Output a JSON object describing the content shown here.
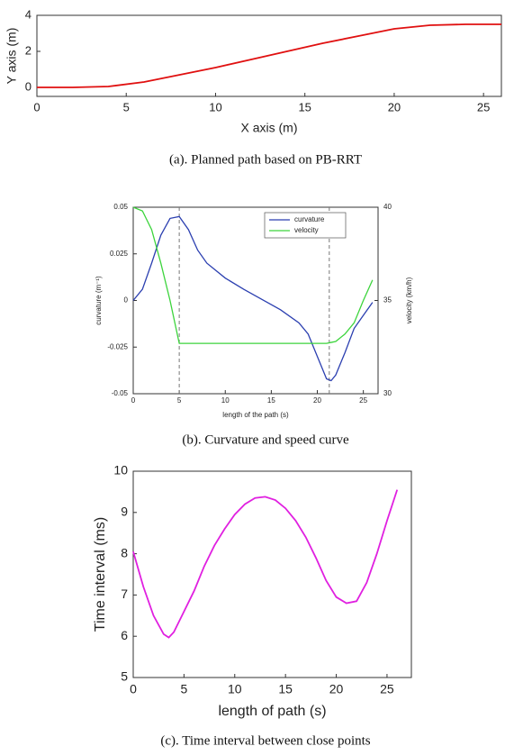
{
  "chart_data": [
    {
      "type": "line",
      "caption": "(a). Planned path based on PB-RRT",
      "xlabel": "X axis (m)",
      "ylabel": "Y axis (m)",
      "x": [
        0,
        2,
        4,
        6,
        8,
        10,
        12,
        14,
        16,
        18,
        20,
        22,
        24,
        26
      ],
      "series": [
        {
          "name": "path",
          "color": "#e01010",
          "values": [
            0,
            0,
            0.05,
            0.3,
            0.7,
            1.1,
            1.55,
            2.0,
            2.45,
            2.85,
            3.25,
            3.45,
            3.5,
            3.5
          ]
        }
      ],
      "xlim": [
        0,
        26
      ],
      "ylim": [
        -0.5,
        4
      ],
      "xticks": [
        0,
        5,
        10,
        15,
        20,
        25
      ],
      "yticks": [
        0,
        2,
        4
      ]
    },
    {
      "type": "line",
      "caption": "(b). Curvature and speed curve",
      "xlabel": "length of the path (s)",
      "ylabel": "curvature (m⁻¹)",
      "y2label": "velocity (km/h)",
      "x": [
        0,
        1,
        2,
        3,
        4,
        5,
        6,
        7,
        8,
        10,
        12,
        14,
        16,
        18,
        19,
        20,
        21,
        21.5,
        22,
        23,
        24,
        25,
        26
      ],
      "series": [
        {
          "name": "curvature",
          "color": "#2b3fb0",
          "values": [
            0,
            0.006,
            0.02,
            0.035,
            0.044,
            0.045,
            0.038,
            0.027,
            0.02,
            0.012,
            0.006,
            0.0005,
            -0.005,
            -0.012,
            -0.018,
            -0.03,
            -0.042,
            -0.043,
            -0.04,
            -0.028,
            -0.015,
            -0.008,
            -0.001
          ]
        },
        {
          "name": "velocity",
          "color": "#3cd43c",
          "axis": "y2",
          "values": [
            40,
            39.8,
            38.8,
            37,
            35,
            32.7,
            32.7,
            32.7,
            32.7,
            32.7,
            32.7,
            32.7,
            32.7,
            32.7,
            32.7,
            32.7,
            32.7,
            32.75,
            32.8,
            33.2,
            33.8,
            35,
            36.1
          ]
        }
      ],
      "vlines": [
        5,
        21.3
      ],
      "legend": "top",
      "xlim": [
        0,
        26.6
      ],
      "ylim": [
        -0.05,
        0.05
      ],
      "y2lim": [
        30,
        40
      ],
      "xticks": [
        0,
        5,
        10,
        15,
        20,
        25
      ],
      "yticks": [
        -0.05,
        -0.025,
        0,
        0.025,
        0.05
      ],
      "y2ticks": [
        30,
        35,
        40
      ]
    },
    {
      "type": "line",
      "caption": "(c). Time interval between close points",
      "xlabel": "length of path (s)",
      "ylabel": "Time interval (ms)",
      "x": [
        0,
        1,
        2,
        3,
        3.5,
        4,
        5,
        6,
        7,
        8,
        9,
        10,
        11,
        12,
        13,
        14,
        15,
        16,
        17,
        18,
        19,
        20,
        21,
        22,
        23,
        24,
        25,
        26
      ],
      "series": [
        {
          "name": "time interval",
          "color": "#e020e0",
          "values": [
            8.05,
            7.2,
            6.5,
            6.05,
            5.97,
            6.1,
            6.6,
            7.1,
            7.7,
            8.2,
            8.6,
            8.95,
            9.2,
            9.35,
            9.38,
            9.3,
            9.1,
            8.8,
            8.4,
            7.9,
            7.35,
            6.95,
            6.8,
            6.85,
            7.3,
            8.0,
            8.8,
            9.55
          ]
        }
      ],
      "xlim": [
        0,
        27.4
      ],
      "ylim": [
        5,
        10
      ],
      "xticks": [
        0,
        5,
        10,
        15,
        20,
        25
      ],
      "yticks": [
        5,
        6,
        7,
        8,
        9,
        10
      ]
    }
  ]
}
